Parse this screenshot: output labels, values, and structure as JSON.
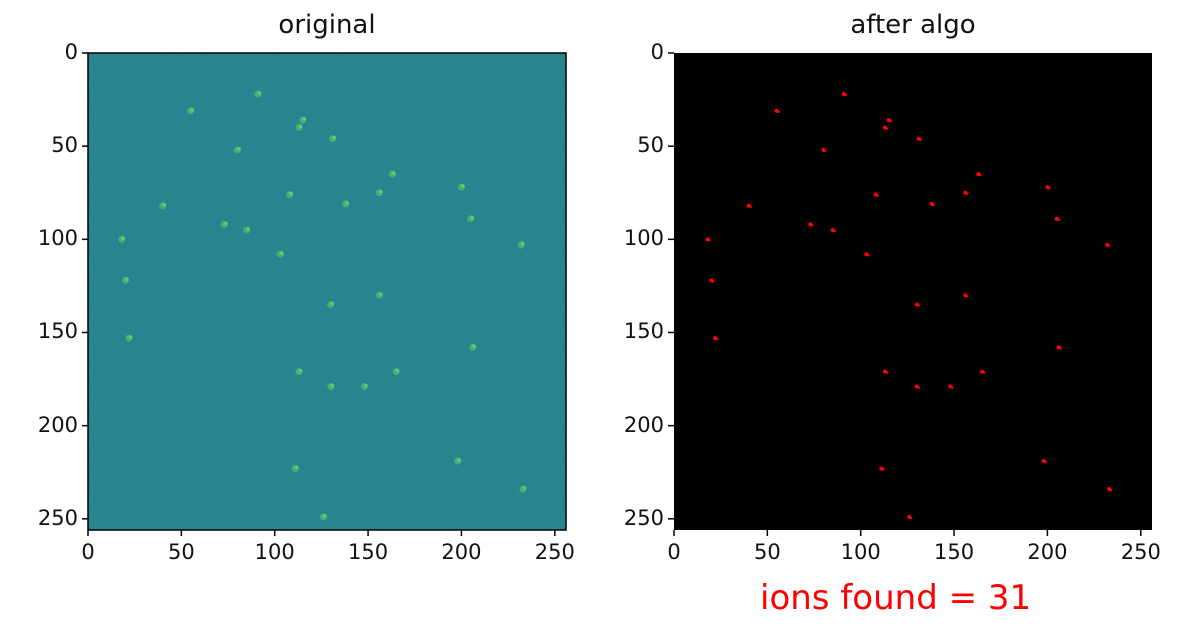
{
  "panels": [
    {
      "title": "original",
      "x_ticks": [
        "0",
        "50",
        "100",
        "150",
        "200",
        "250"
      ],
      "y_ticks": [
        "0",
        "50",
        "100",
        "150",
        "200",
        "250"
      ],
      "background": "#26838e",
      "spot_color": "#5fcf6a"
    },
    {
      "title": "after algo",
      "x_ticks": [
        "0",
        "50",
        "100",
        "150",
        "200",
        "250"
      ],
      "y_ticks": [
        "0",
        "50",
        "100",
        "150",
        "200",
        "250"
      ],
      "background": "#000000",
      "spot_color": "#ff0000"
    }
  ],
  "caption": "ions found = 31",
  "image_size": [
    256,
    256
  ],
  "ions": [
    [
      55,
      31
    ],
    [
      91,
      22
    ],
    [
      115,
      36
    ],
    [
      113,
      40
    ],
    [
      131,
      46
    ],
    [
      80,
      52
    ],
    [
      163,
      65
    ],
    [
      156,
      75
    ],
    [
      200,
      72
    ],
    [
      108,
      76
    ],
    [
      138,
      81
    ],
    [
      205,
      89
    ],
    [
      73,
      92
    ],
    [
      85,
      95
    ],
    [
      18,
      100
    ],
    [
      232,
      103
    ],
    [
      103,
      108
    ],
    [
      20,
      122
    ],
    [
      156,
      130
    ],
    [
      130,
      135
    ],
    [
      22,
      153
    ],
    [
      206,
      158
    ],
    [
      113,
      171
    ],
    [
      165,
      171
    ],
    [
      130,
      179
    ],
    [
      148,
      179
    ],
    [
      198,
      219
    ],
    [
      111,
      223
    ],
    [
      233,
      234
    ],
    [
      126,
      249
    ],
    [
      40,
      82
    ]
  ]
}
